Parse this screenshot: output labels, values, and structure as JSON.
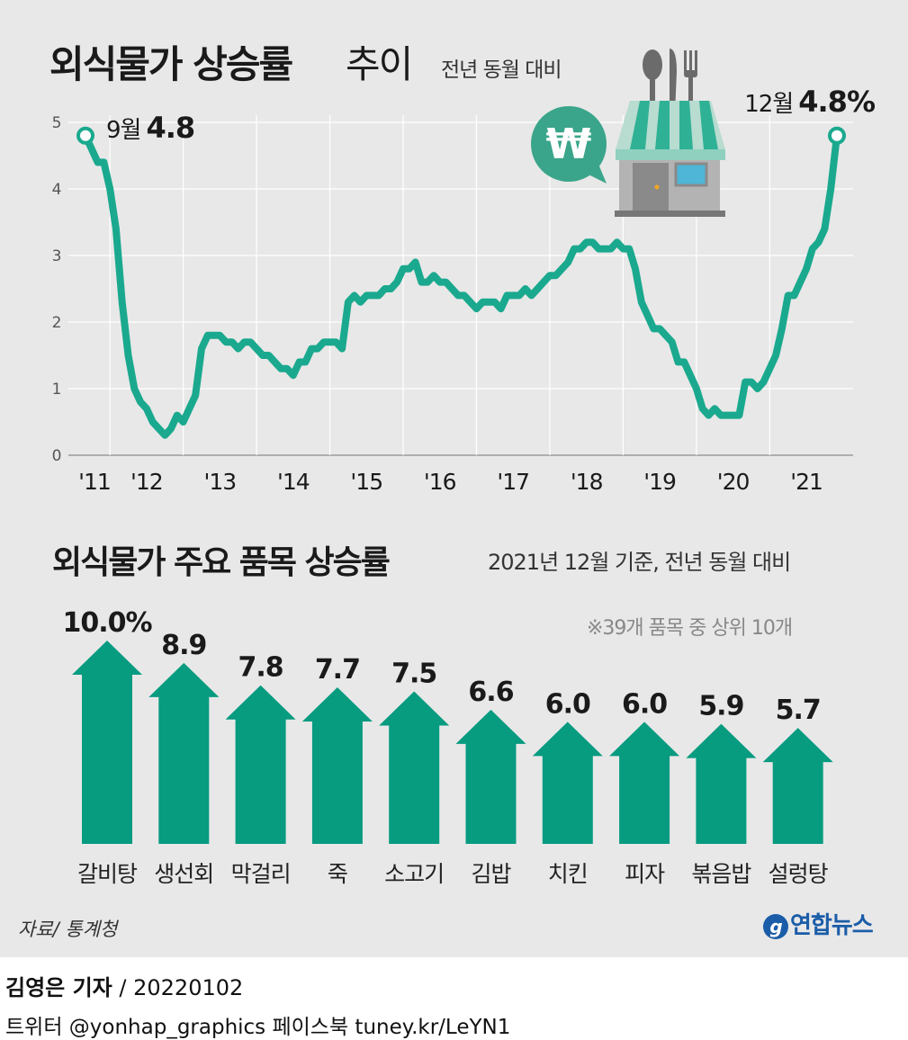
{
  "header": {
    "title_bold": "외식물가 상승률",
    "title_normal": "추이",
    "subtitle": "전년 동월 대비"
  },
  "chart_data": [
    {
      "type": "line",
      "title": "외식물가 상승률 추이",
      "subtitle": "전년 동월 대비",
      "x_tick_labels": [
        "'11",
        "'12",
        "'13",
        "'14",
        "'15",
        "'16",
        "'17",
        "'18",
        "'19",
        "'20",
        "'21"
      ],
      "y_ticks": [
        0,
        1,
        2,
        3,
        4,
        5
      ],
      "ylim": [
        0,
        5
      ],
      "x_start": "2011-09",
      "x_end": "2021-12",
      "grid": true,
      "annotations": [
        {
          "label": "9월",
          "value_label": "4.8",
          "x": "2011-09",
          "y": 4.8
        },
        {
          "label": "12월",
          "value_label": "4.8%",
          "x": "2021-12",
          "y": 4.8
        }
      ],
      "series": [
        {
          "values": [
            [
              "2011-09",
              4.8
            ],
            [
              "2011-10",
              4.6
            ],
            [
              "2011-11",
              4.4
            ],
            [
              "2011-12",
              4.4
            ],
            [
              "2012-01",
              4.0
            ],
            [
              "2012-02",
              3.4
            ],
            [
              "2012-03",
              2.3
            ],
            [
              "2012-04",
              1.5
            ],
            [
              "2012-05",
              1.0
            ],
            [
              "2012-06",
              0.8
            ],
            [
              "2012-07",
              0.7
            ],
            [
              "2012-08",
              0.5
            ],
            [
              "2012-09",
              0.4
            ],
            [
              "2012-10",
              0.3
            ],
            [
              "2012-11",
              0.4
            ],
            [
              "2012-12",
              0.6
            ],
            [
              "2013-01",
              0.5
            ],
            [
              "2013-02",
              0.7
            ],
            [
              "2013-03",
              0.9
            ],
            [
              "2013-04",
              1.6
            ],
            [
              "2013-05",
              1.8
            ],
            [
              "2013-06",
              1.8
            ],
            [
              "2013-07",
              1.8
            ],
            [
              "2013-08",
              1.7
            ],
            [
              "2013-09",
              1.7
            ],
            [
              "2013-10",
              1.6
            ],
            [
              "2013-11",
              1.7
            ],
            [
              "2013-12",
              1.7
            ],
            [
              "2014-01",
              1.6
            ],
            [
              "2014-02",
              1.5
            ],
            [
              "2014-03",
              1.5
            ],
            [
              "2014-04",
              1.4
            ],
            [
              "2014-05",
              1.3
            ],
            [
              "2014-06",
              1.3
            ],
            [
              "2014-07",
              1.2
            ],
            [
              "2014-08",
              1.4
            ],
            [
              "2014-09",
              1.4
            ],
            [
              "2014-10",
              1.6
            ],
            [
              "2014-11",
              1.6
            ],
            [
              "2014-12",
              1.7
            ],
            [
              "2015-01",
              1.7
            ],
            [
              "2015-02",
              1.7
            ],
            [
              "2015-03",
              1.6
            ],
            [
              "2015-04",
              2.3
            ],
            [
              "2015-05",
              2.4
            ],
            [
              "2015-06",
              2.3
            ],
            [
              "2015-07",
              2.4
            ],
            [
              "2015-08",
              2.4
            ],
            [
              "2015-09",
              2.4
            ],
            [
              "2015-10",
              2.5
            ],
            [
              "2015-11",
              2.5
            ],
            [
              "2015-12",
              2.6
            ],
            [
              "2016-01",
              2.8
            ],
            [
              "2016-02",
              2.8
            ],
            [
              "2016-03",
              2.9
            ],
            [
              "2016-04",
              2.6
            ],
            [
              "2016-05",
              2.6
            ],
            [
              "2016-06",
              2.7
            ],
            [
              "2016-07",
              2.6
            ],
            [
              "2016-08",
              2.6
            ],
            [
              "2016-09",
              2.5
            ],
            [
              "2016-10",
              2.4
            ],
            [
              "2016-11",
              2.4
            ],
            [
              "2016-12",
              2.3
            ],
            [
              "2017-01",
              2.2
            ],
            [
              "2017-02",
              2.3
            ],
            [
              "2017-03",
              2.3
            ],
            [
              "2017-04",
              2.3
            ],
            [
              "2017-05",
              2.2
            ],
            [
              "2017-06",
              2.4
            ],
            [
              "2017-07",
              2.4
            ],
            [
              "2017-08",
              2.4
            ],
            [
              "2017-09",
              2.5
            ],
            [
              "2017-10",
              2.4
            ],
            [
              "2017-11",
              2.5
            ],
            [
              "2017-12",
              2.6
            ],
            [
              "2018-01",
              2.7
            ],
            [
              "2018-02",
              2.7
            ],
            [
              "2018-03",
              2.8
            ],
            [
              "2018-04",
              2.9
            ],
            [
              "2018-05",
              3.1
            ],
            [
              "2018-06",
              3.1
            ],
            [
              "2018-07",
              3.2
            ],
            [
              "2018-08",
              3.2
            ],
            [
              "2018-09",
              3.1
            ],
            [
              "2018-10",
              3.1
            ],
            [
              "2018-11",
              3.1
            ],
            [
              "2018-12",
              3.2
            ],
            [
              "2019-01",
              3.1
            ],
            [
              "2019-02",
              3.1
            ],
            [
              "2019-03",
              2.8
            ],
            [
              "2019-04",
              2.3
            ],
            [
              "2019-05",
              2.1
            ],
            [
              "2019-06",
              1.9
            ],
            [
              "2019-07",
              1.9
            ],
            [
              "2019-08",
              1.8
            ],
            [
              "2019-09",
              1.7
            ],
            [
              "2019-10",
              1.4
            ],
            [
              "2019-11",
              1.4
            ],
            [
              "2019-12",
              1.2
            ],
            [
              "2020-01",
              1.0
            ],
            [
              "2020-02",
              0.7
            ],
            [
              "2020-03",
              0.6
            ],
            [
              "2020-04",
              0.7
            ],
            [
              "2020-05",
              0.6
            ],
            [
              "2020-06",
              0.6
            ],
            [
              "2020-07",
              0.6
            ],
            [
              "2020-08",
              0.6
            ],
            [
              "2020-09",
              1.1
            ],
            [
              "2020-10",
              1.1
            ],
            [
              "2020-11",
              1.0
            ],
            [
              "2020-12",
              1.1
            ],
            [
              "2021-01",
              1.3
            ],
            [
              "2021-02",
              1.5
            ],
            [
              "2021-03",
              1.9
            ],
            [
              "2021-04",
              2.4
            ],
            [
              "2021-05",
              2.4
            ],
            [
              "2021-06",
              2.6
            ],
            [
              "2021-07",
              2.8
            ],
            [
              "2021-08",
              3.1
            ],
            [
              "2021-09",
              3.2
            ],
            [
              "2021-10",
              3.4
            ],
            [
              "2021-11",
              4.0
            ],
            [
              "2021-12",
              4.8
            ]
          ]
        }
      ]
    },
    {
      "type": "bar",
      "title": "외식물가 주요 품목 상승률",
      "subtitle": "2021년 12월 기준, 전년 동월 대비",
      "note": "※39개 품목 중 상위 10개",
      "categories": [
        "갈비탕",
        "생선회",
        "막걸리",
        "죽",
        "소고기",
        "김밥",
        "치킨",
        "피자",
        "볶음밥",
        "설렁탕"
      ],
      "values": [
        10.0,
        8.9,
        7.8,
        7.7,
        7.5,
        6.6,
        6.0,
        6.0,
        5.9,
        5.7
      ],
      "value_labels": [
        "10.0%",
        "8.9",
        "7.8",
        "7.7",
        "7.5",
        "6.6",
        "6.0",
        "6.0",
        "5.9",
        "5.7"
      ]
    }
  ],
  "section2": {
    "title": "외식물가 주요 품목 상승률",
    "subtitle": "2021년 12월 기준, 전년 동월 대비",
    "note": "※39개 품목 중 상위 10개"
  },
  "footer": {
    "source": "자료/ 통계청",
    "logo_text": "연합뉴스",
    "byline_name": "김영은 기자",
    "byline_date": " / 20220102",
    "social": "트위터 @yonhap_graphics  페이스북 tuney.kr/LeYN1"
  },
  "colors": {
    "accent": "#16a085",
    "bar": "#079b80",
    "line": "#1aa98e",
    "background": "#e8e8e8",
    "gridline": "#ffffff",
    "logo": "#1b5da8"
  },
  "icons": [
    "won-speech-bubble-icon",
    "restaurant-storefront-icon",
    "fork-spoon-knife-icon",
    "yonhap-logo-icon"
  ]
}
